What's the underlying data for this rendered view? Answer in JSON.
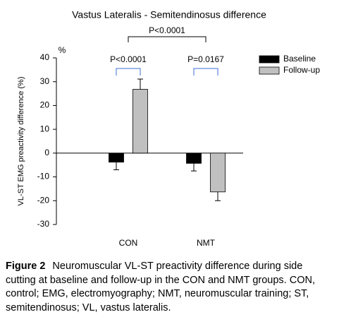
{
  "chart_data": {
    "type": "bar",
    "title": "Vastus Lateralis - Semitendinosus difference",
    "y_label": "VL-ST EMG preactivity difference (%)",
    "y_unit": "%",
    "categories": [
      "CON",
      "NMT"
    ],
    "series": [
      {
        "name": "Baseline",
        "color": "#000000",
        "values": [
          -3.8,
          -4.3
        ],
        "errors": [
          3.2,
          3.2
        ]
      },
      {
        "name": "Follow-up",
        "color": "#c0c0c0",
        "values": [
          26.8,
          -16.3
        ],
        "errors": [
          4.3,
          3.7
        ]
      }
    ],
    "ylim": [
      -30,
      40
    ],
    "yticks": [
      -30,
      -20,
      -10,
      0,
      10,
      20,
      30,
      40
    ],
    "annotations": [
      "P<0.0001",
      "P<0.0001",
      "P=0.0167"
    ],
    "legend": "top-right"
  },
  "caption": {
    "label": "Figure 2",
    "text": "Neuromuscular VL-ST preactivity difference during side cutting at baseline and follow-up in the CON and NMT groups. CON, control; EMG, electromyography; NMT, neuromuscular training; ST, semitendinosus; VL, vastus lateralis."
  }
}
